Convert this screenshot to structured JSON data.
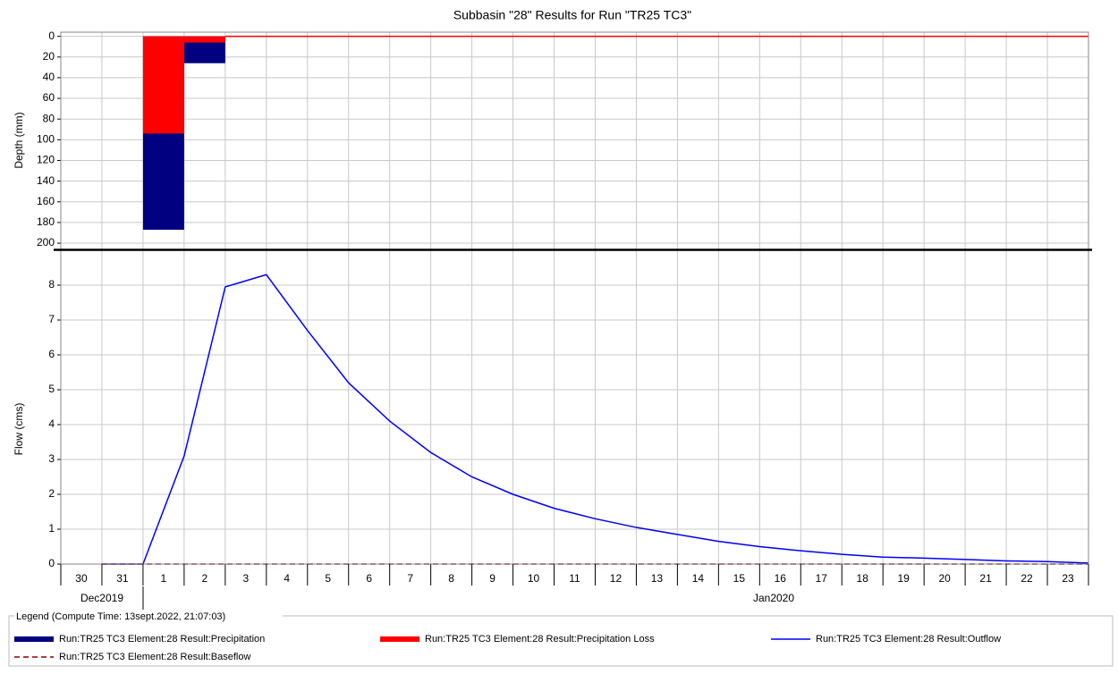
{
  "chart_data": [
    {
      "type": "bar",
      "title": "Subbasin \"28\" Results for Run \"TR25 TC3\"",
      "y_label": "Depth (mm)",
      "xlim": [
        0,
        25
      ],
      "ylim": [
        -4,
        206
      ],
      "yticks": [
        0,
        20,
        40,
        60,
        80,
        100,
        120,
        140,
        160,
        180,
        200
      ],
      "inverted": true,
      "grid": true,
      "x": [
        2,
        3
      ],
      "series": [
        {
          "name": "Run:TR25 TC3 Element:28 Result:Precipitation",
          "color": "#000080",
          "values": [
            187,
            26
          ]
        },
        {
          "name": "Run:TR25 TC3 Element:28 Result:Precipitation Loss",
          "color": "#ff0000",
          "values": [
            94,
            6
          ]
        }
      ]
    },
    {
      "type": "line",
      "y_label": "Flow (cms)",
      "categories": [
        "30",
        "31",
        "1",
        "2",
        "3",
        "4",
        "5",
        "6",
        "7",
        "8",
        "9",
        "10",
        "11",
        "12",
        "13",
        "14",
        "15",
        "16",
        "17",
        "18",
        "19",
        "20",
        "21",
        "22",
        "23"
      ],
      "months": [
        "Dec2019",
        "Jan2020"
      ],
      "xlim": [
        0,
        25
      ],
      "ylim": [
        0,
        9
      ],
      "yticks": [
        0,
        1,
        2,
        3,
        4,
        5,
        6,
        7,
        8
      ],
      "grid": true,
      "x": [
        1,
        2,
        3,
        4,
        5,
        6,
        7,
        8,
        9,
        10,
        11,
        12,
        13,
        14,
        15,
        16,
        17,
        18,
        19,
        20,
        21,
        22,
        23,
        24,
        25
      ],
      "series": [
        {
          "name": "Run:TR25 TC3 Element:28 Result:Outflow",
          "color": "#0000ff",
          "dash": false,
          "values": [
            0,
            0,
            3.1,
            7.95,
            8.3,
            6.7,
            5.2,
            4.1,
            3.2,
            2.5,
            2.0,
            1.6,
            1.3,
            1.05,
            0.85,
            0.65,
            0.5,
            0.38,
            0.28,
            0.2,
            0.17,
            0.13,
            0.09,
            0.07,
            0.03
          ]
        },
        {
          "name": "Run:TR25 TC3 Element:28 Result:Baseflow",
          "color": "#8b0000",
          "dash": true,
          "values": [
            0,
            0,
            0,
            0,
            0,
            0,
            0,
            0,
            0,
            0,
            0,
            0,
            0,
            0,
            0,
            0,
            0,
            0,
            0,
            0,
            0,
            0,
            0,
            0,
            0
          ]
        }
      ],
      "legend_title": "Legend (Compute Time: 13sept.2022, 21:07:03)"
    }
  ]
}
